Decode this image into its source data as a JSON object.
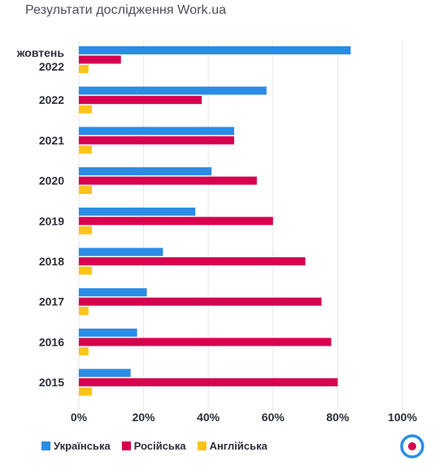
{
  "title": "Результати дослідження Work.ua",
  "logo_icon": "work-ua-target-logo-icon",
  "colors": {
    "ukrainian": "#2b8ce6",
    "russian": "#d6004f",
    "english": "#fcc419",
    "grid": "#e3e5ea",
    "text": "#2b2f3a"
  },
  "chart_data": {
    "type": "bar",
    "orientation": "horizontal",
    "categories": [
      [
        "жовтень",
        "2022"
      ],
      [
        "2022"
      ],
      [
        "2021"
      ],
      [
        "2020"
      ],
      [
        "2019"
      ],
      [
        "2018"
      ],
      [
        "2017"
      ],
      [
        "2016"
      ],
      [
        "2015"
      ]
    ],
    "series": [
      {
        "name": "Українська",
        "color": "#2b8ce6",
        "values": [
          84,
          58,
          48,
          41,
          36,
          26,
          21,
          18,
          16
        ]
      },
      {
        "name": "Російська",
        "color": "#d6004f",
        "values": [
          13,
          38,
          48,
          55,
          60,
          70,
          75,
          78,
          80
        ]
      },
      {
        "name": "Англійська",
        "color": "#fcc419",
        "values": [
          3,
          4,
          4,
          4,
          4,
          4,
          3,
          3,
          4
        ]
      }
    ],
    "xlim": [
      0,
      100
    ],
    "x_ticks": [
      "0%",
      "20%",
      "40%",
      "60%",
      "80%",
      "100%"
    ],
    "grid": true,
    "legend_position": "bottom"
  }
}
